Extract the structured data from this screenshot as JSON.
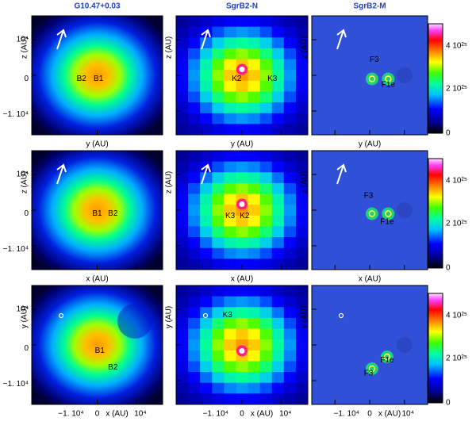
{
  "columns": [
    "G10.47+0.03",
    "SgrB2-N",
    "SgrB2-M"
  ],
  "rows": [
    {
      "xlabel": "y (AU)",
      "ylabel": "z (AU)",
      "panels": [
        {
          "labels": [
            "B2",
            "B1"
          ]
        },
        {
          "labels": [
            "K2",
            "K3"
          ]
        },
        {
          "labels": [
            "F3",
            "F1e"
          ]
        }
      ]
    },
    {
      "xlabel": "x (AU)",
      "ylabel": "z (AU)",
      "panels": [
        {
          "labels": [
            "B1",
            "B2"
          ]
        },
        {
          "labels": [
            "K3",
            "K2"
          ]
        },
        {
          "labels": [
            "F3",
            "F1e"
          ]
        }
      ]
    },
    {
      "xlabel": "x (AU)",
      "ylabel": "y (AU)",
      "panels": [
        {
          "labels": [
            "B1",
            "B2"
          ]
        },
        {
          "labels": [
            "K3"
          ]
        },
        {
          "labels": [
            "F1e",
            "F3"
          ]
        }
      ]
    }
  ],
  "yticks": [
    "10⁴",
    "0",
    "−1. 10⁴"
  ],
  "xticks": [
    "−1. 10⁴",
    "0",
    "10⁴"
  ],
  "colorbar_ticks": [
    "4 10²⁵",
    "2 10²⁵",
    "0"
  ]
}
